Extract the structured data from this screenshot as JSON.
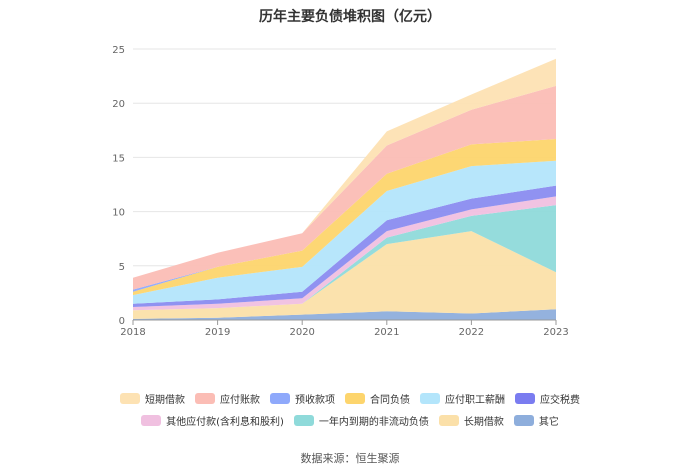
{
  "chart_data": {
    "type": "area",
    "stacked": true,
    "title": "历年主要负债堆积图（亿元）",
    "xlabel": "",
    "ylabel": "",
    "categories": [
      "2018",
      "2019",
      "2020",
      "2021",
      "2022",
      "2023"
    ],
    "ylim": [
      0,
      25
    ],
    "yticks": [
      "0",
      "5",
      "10",
      "15",
      "20",
      "25"
    ],
    "grid": true,
    "legend_position": "bottom",
    "series": [
      {
        "name": "其它",
        "color": "#8eaedc",
        "values": [
          0.1,
          0.2,
          0.5,
          0.8,
          0.6,
          1.0
        ]
      },
      {
        "name": "长期借款",
        "color": "#fbe0a9",
        "values": [
          0.8,
          0.9,
          1.0,
          6.2,
          7.6,
          3.4
        ]
      },
      {
        "name": "一年内到期的非流动负债",
        "color": "#8fdada",
        "values": [
          0.0,
          0.0,
          0.0,
          0.6,
          1.4,
          6.2
        ]
      },
      {
        "name": "其他应付款(含利息和股利)",
        "color": "#f0c0e0",
        "values": [
          0.3,
          0.4,
          0.5,
          0.6,
          0.6,
          0.8
        ]
      },
      {
        "name": "应交税费",
        "color": "#8a8cf0",
        "values": [
          0.3,
          0.4,
          0.6,
          1.0,
          1.0,
          1.0
        ]
      },
      {
        "name": "应付职工薪酬",
        "color": "#b3e5fb",
        "values": [
          0.8,
          2.0,
          2.3,
          2.7,
          3.0,
          2.3
        ]
      },
      {
        "name": "合同负债",
        "color": "#fdd56d",
        "values": [
          0.3,
          1.0,
          1.5,
          1.6,
          2.0,
          2.0
        ]
      },
      {
        "name": "预收款项",
        "color": "#8fa9fb",
        "values": [
          0.2,
          0.0,
          0.0,
          0.0,
          0.0,
          0.0
        ]
      },
      {
        "name": "应付账款",
        "color": "#fbbdb5",
        "values": [
          1.1,
          1.3,
          1.6,
          2.6,
          3.2,
          4.9
        ]
      },
      {
        "name": "短期借款",
        "color": "#fde2b3",
        "values": [
          0.0,
          0.0,
          0.0,
          1.3,
          1.4,
          2.5
        ]
      }
    ]
  },
  "legend": {
    "row1": [
      {
        "label": "短期借款",
        "color": "#fde2b3"
      },
      {
        "label": "应付账款",
        "color": "#fbbdb5"
      },
      {
        "label": "预收款项",
        "color": "#8fa9fb"
      },
      {
        "label": "合同负债",
        "color": "#fdd56d"
      },
      {
        "label": "应付职工薪酬",
        "color": "#b3e5fb"
      },
      {
        "label": "应交税费",
        "color": "#7a7cf0"
      }
    ],
    "row2": [
      {
        "label": "其他应付款(含利息和股利)",
        "color": "#f0c0e0"
      },
      {
        "label": "一年内到期的非流动负债",
        "color": "#8fdada"
      },
      {
        "label": "长期借款",
        "color": "#fbe0a9"
      },
      {
        "label": "其它",
        "color": "#8eaedc"
      }
    ]
  },
  "footer": {
    "source": "数据来源：恒生聚源"
  }
}
